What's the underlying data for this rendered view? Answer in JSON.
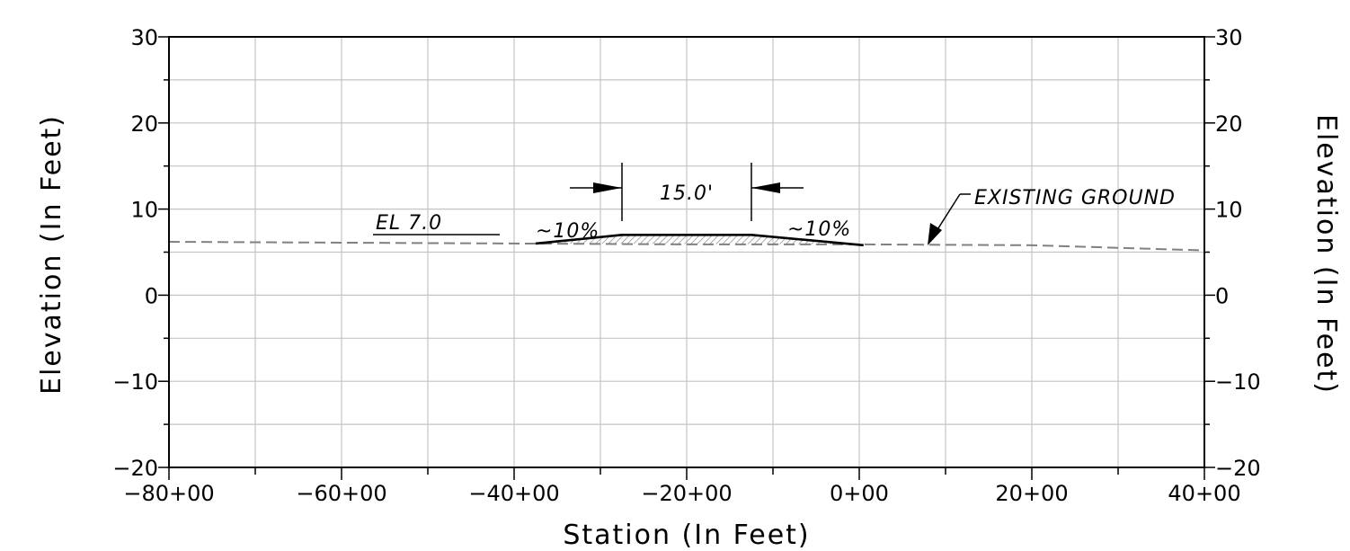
{
  "chart_data": {
    "type": "line",
    "xlabel": "Station (In Feet)",
    "ylabel_left": "Elevation (In Feet)",
    "ylabel_right": "Elevation (In Feet)",
    "xlim": [
      -80,
      40
    ],
    "ylim": [
      -20,
      30
    ],
    "x_ticks": [
      -80,
      -60,
      -40,
      -20,
      0,
      20,
      40
    ],
    "x_tick_labels": [
      "−80+00",
      "−60+00",
      "−40+00",
      "−20+00",
      "0+00",
      "20+00",
      "40+00"
    ],
    "y_ticks": [
      -20,
      -10,
      0,
      10,
      20,
      30
    ],
    "y_tick_labels": [
      "−20",
      "−10",
      "0",
      "10",
      "20",
      "30"
    ],
    "grid": true,
    "series": [
      {
        "style": "dashed",
        "color": "#808080",
        "points": [
          [
            -80,
            6.2
          ],
          [
            -60,
            6.1
          ],
          [
            -40,
            6.0
          ],
          [
            -20,
            5.9
          ],
          [
            0,
            5.9
          ],
          [
            20,
            5.8
          ],
          [
            40,
            5.2
          ]
        ]
      },
      {
        "style": "solid",
        "color": "#000000",
        "points": [
          [
            -37.5,
            6.0
          ],
          [
            -27.5,
            7.0
          ],
          [
            -12.5,
            7.0
          ],
          [
            0.5,
            5.8
          ]
        ]
      }
    ],
    "annotations": {
      "el_label": "EL 7.0",
      "slope_left": "~10%",
      "slope_right": "~10%",
      "dimension": "15.0'",
      "existing_ground": "EXISTING GROUND"
    }
  }
}
